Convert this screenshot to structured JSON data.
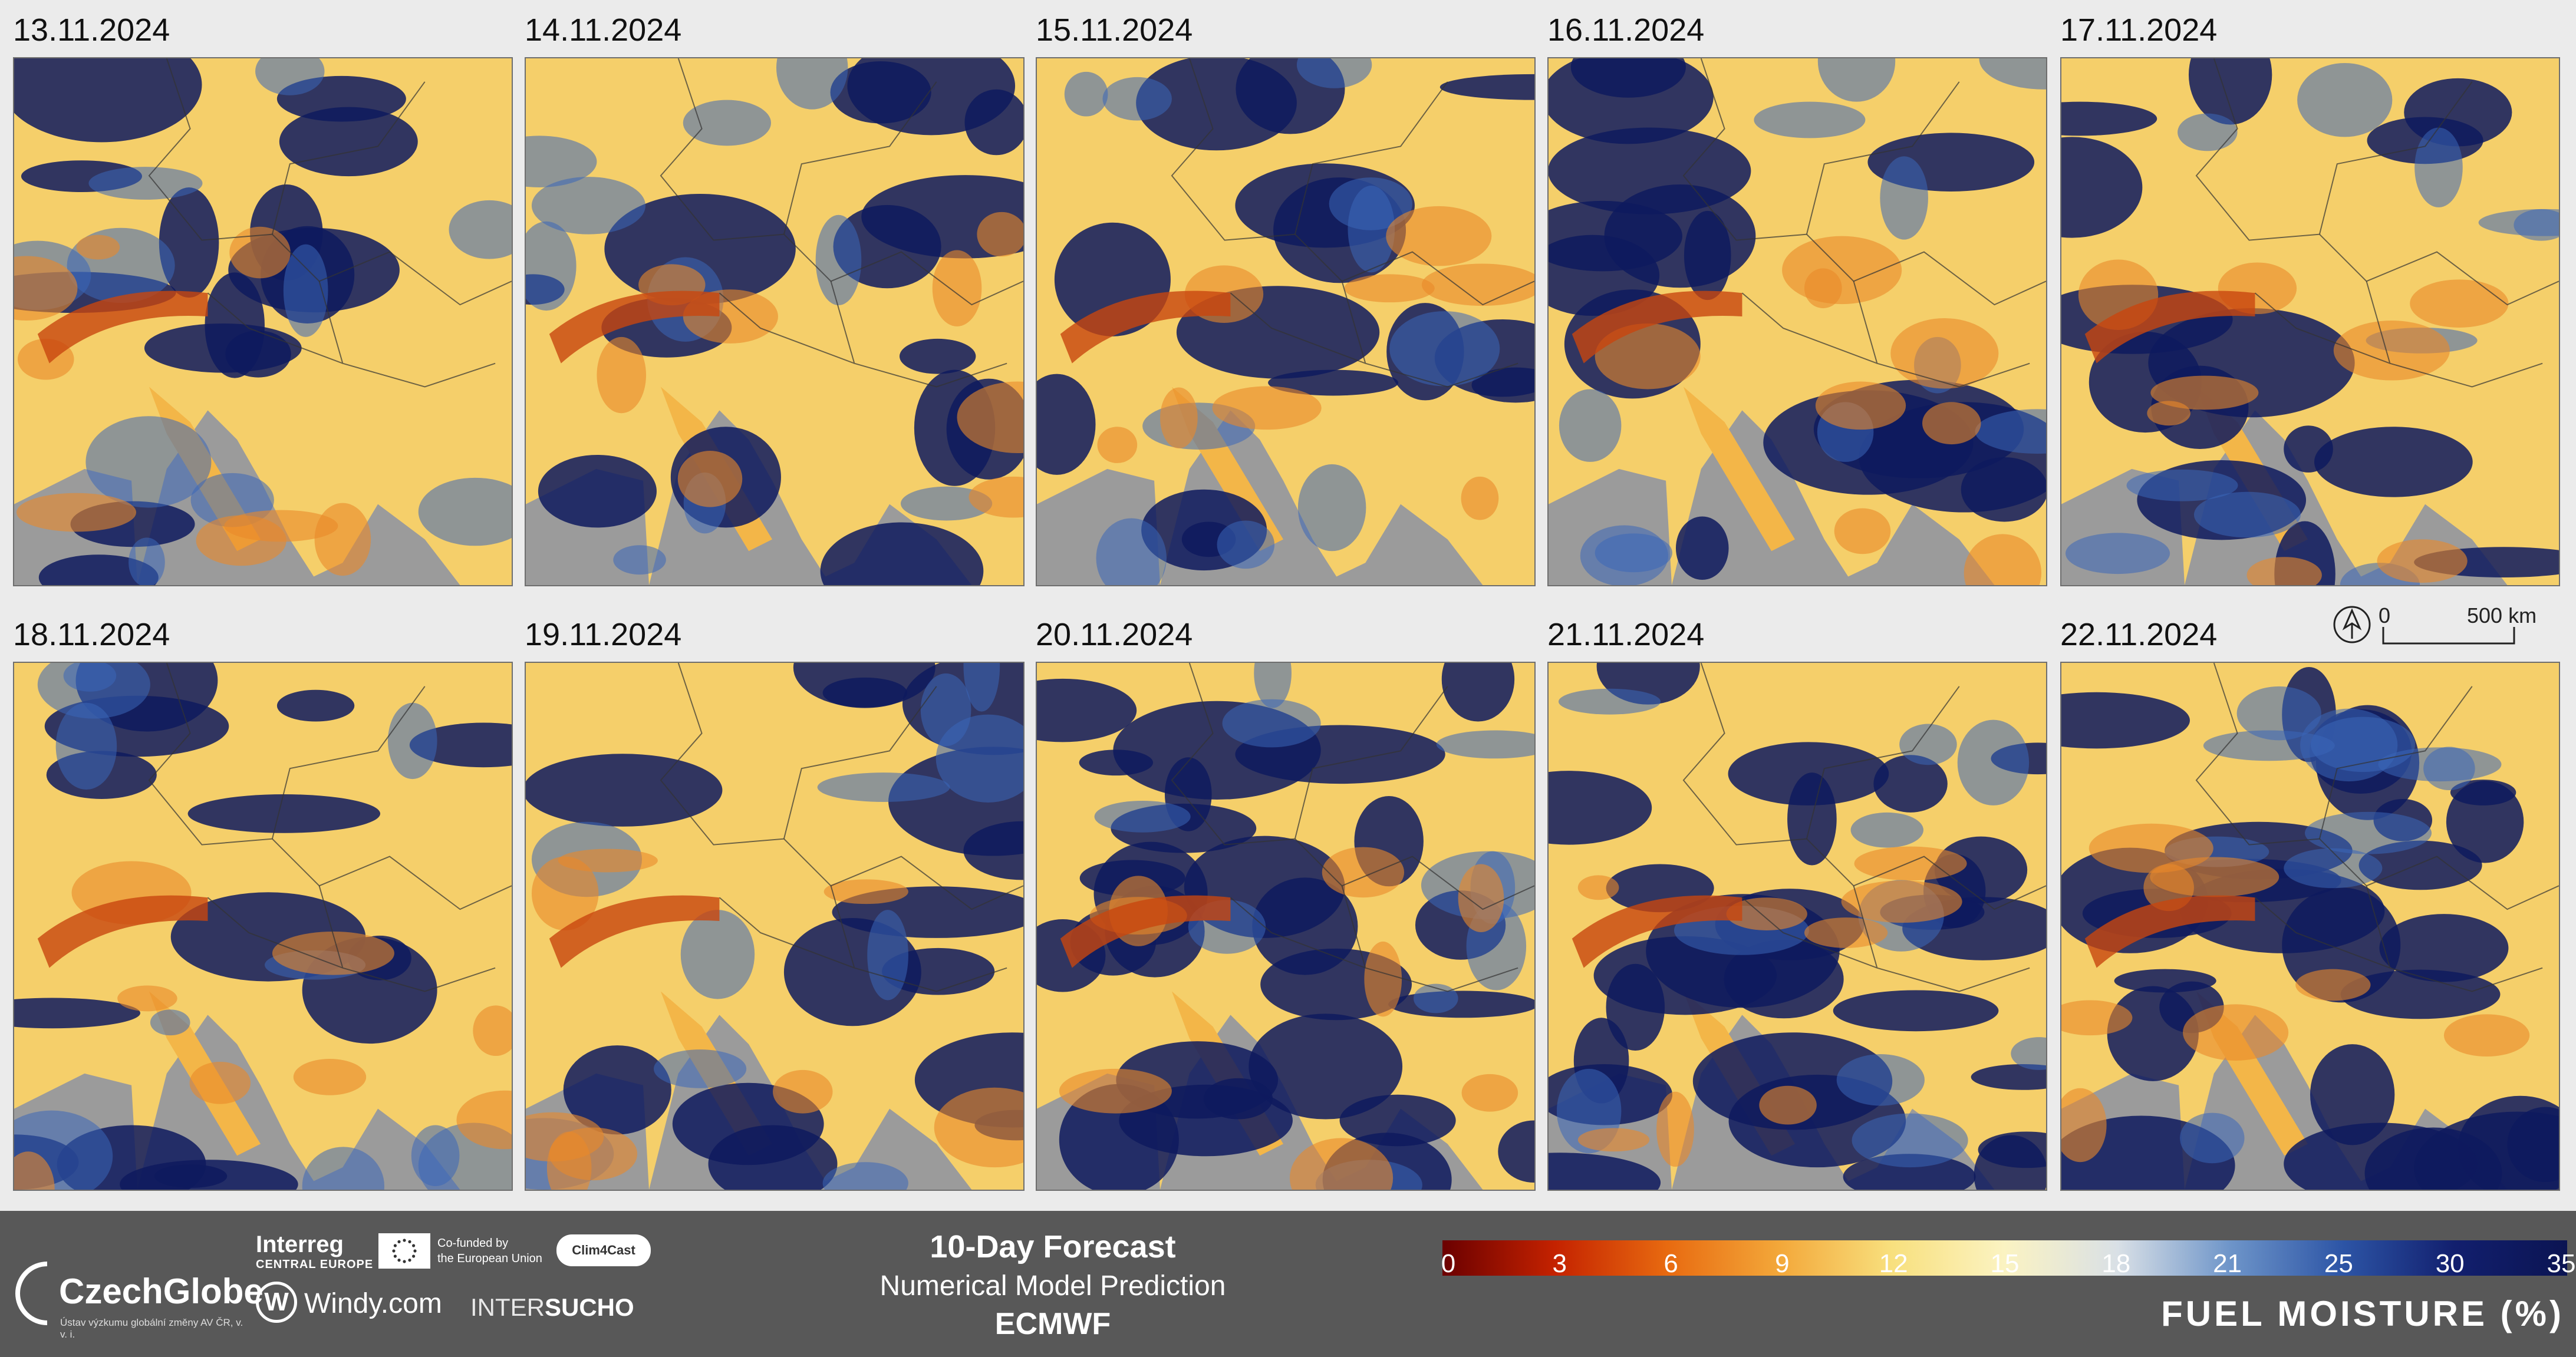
{
  "panels": [
    {
      "date": "13.11.2024"
    },
    {
      "date": "14.11.2024"
    },
    {
      "date": "15.11.2024"
    },
    {
      "date": "16.11.2024"
    },
    {
      "date": "17.11.2024"
    },
    {
      "date": "18.11.2024"
    },
    {
      "date": "19.11.2024"
    },
    {
      "date": "20.11.2024"
    },
    {
      "date": "21.11.2024"
    },
    {
      "date": "22.11.2024"
    }
  ],
  "scalebar": {
    "zero": "0",
    "distance": "500 km"
  },
  "footer": {
    "logos": {
      "czechglobe": "CzechGlobe",
      "czechglobe_sub": "Ústav výzkumu globální změny AV ČR, v. v. i.",
      "interreg": "Interreg",
      "interreg_sub": "CENTRAL EUROPE",
      "cofunded_line1": "Co-funded by",
      "cofunded_line2": "the European Union",
      "clim4cast": "Clim4Cast",
      "windy": "Windy.com",
      "intersucho_a": "INTER",
      "intersucho_b": "SUCHO"
    },
    "forecast_title": "10-Day Forecast",
    "forecast_subtitle": "Numerical Model Prediction",
    "forecast_model": "ECMWF"
  },
  "colorbar": {
    "title": "FUEL MOISTURE (%)",
    "ticks": [
      "0",
      "3",
      "6",
      "9",
      "12",
      "15",
      "18",
      "21",
      "25",
      "30",
      "35"
    ],
    "colors": [
      "#6b0000",
      "#c42200",
      "#e86a10",
      "#f3a83a",
      "#f8e07e",
      "#fbf3c2",
      "#d9e0e6",
      "#6e95c9",
      "#2d55a6",
      "#121f6e",
      "#0b1452"
    ]
  },
  "colors": {
    "background": "#ebebeb",
    "footer": "#585858",
    "land_gray": "#9b9b9b",
    "moist": "#0e1a5e",
    "dry": "#f5c55a"
  }
}
